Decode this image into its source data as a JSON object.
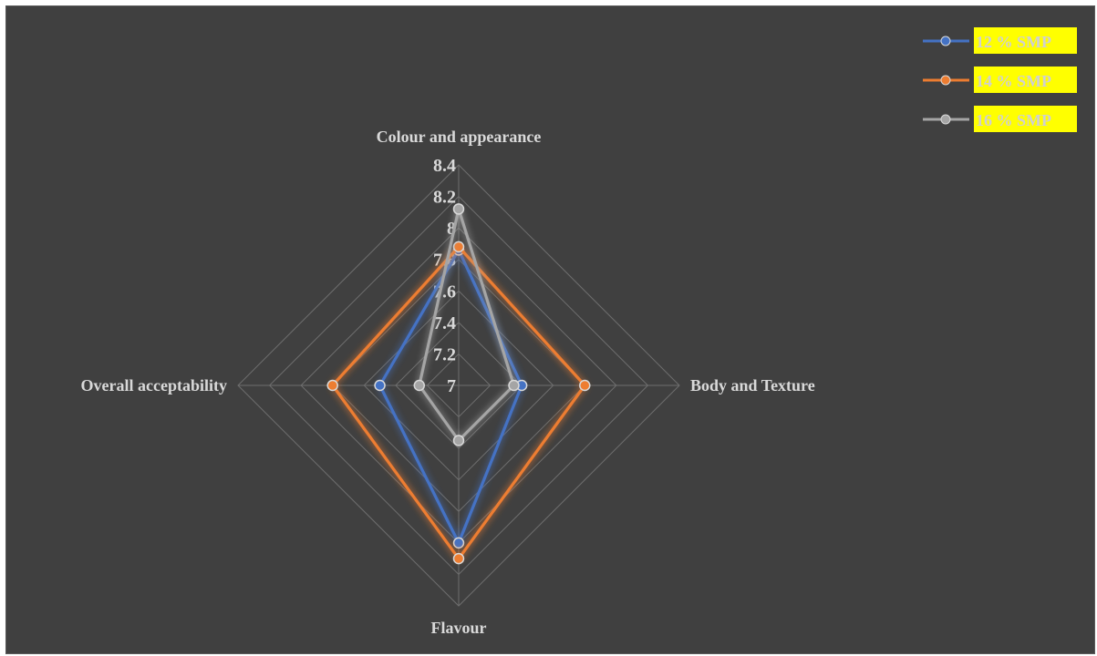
{
  "chart_data": {
    "type": "radar",
    "axes": [
      "Colour and appearance",
      "Body and Texture",
      "Flavour",
      "Overall acceptability"
    ],
    "rlim": [
      7,
      8.4
    ],
    "ticks": [
      "7",
      "7.2",
      "7.4",
      "7.6",
      "7.8",
      "8",
      "8.2",
      "8.4"
    ],
    "series": [
      {
        "name": "12 %  SMP",
        "color": "#4472c4",
        "values": [
          7.86,
          7.4,
          8.0,
          7.5
        ]
      },
      {
        "name": "14 % SMP",
        "color": "#ed7d31",
        "values": [
          7.88,
          7.8,
          8.1,
          7.8
        ]
      },
      {
        "name": "16 % SMP",
        "color": "#a5a5a5",
        "values": [
          8.12,
          7.35,
          7.35,
          7.25
        ]
      }
    ],
    "legend_position": "top-right",
    "legend_highlight": "#ffff00",
    "background": "#404040",
    "grid": true
  }
}
